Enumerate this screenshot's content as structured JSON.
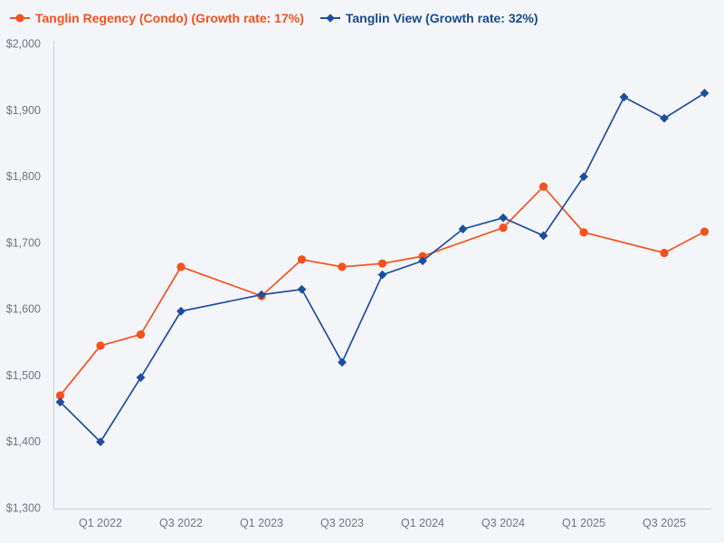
{
  "page": {
    "background": "#f4f5f8",
    "axis_line_color": "#c7d0de",
    "tick_text_color": "#6e7682"
  },
  "legend": {
    "items": [
      {
        "label": "Tanglin Regency (Condo) (Growth rate: 17%)",
        "text_color": "#f4511e",
        "line_color": "#f4511e",
        "marker": "circle"
      },
      {
        "label": "Tanglin View (Growth rate: 32%)",
        "text_color": "#17498f",
        "line_color": "#1d4e9e",
        "marker": "diamond"
      }
    ]
  },
  "chart_data": {
    "type": "line",
    "title": "",
    "xlabel": "",
    "ylabel": "",
    "grid": false,
    "legend_position": "top-left",
    "categories": [
      "Q4 2021",
      "Q1 2022",
      "Q2 2022",
      "Q3 2022",
      "Q4 2022",
      "Q1 2023",
      "Q2 2023",
      "Q3 2023",
      "Q4 2023",
      "Q1 2024",
      "Q2 2024",
      "Q3 2024",
      "Q4 2024",
      "Q1 2025",
      "Q2 2025",
      "Q3 2025",
      "Q4 2025"
    ],
    "x_axis": {
      "tick_indices": [
        1,
        3,
        5,
        7,
        9,
        11,
        13,
        15
      ],
      "tick_labels": [
        "Q1 2022",
        "Q3 2022",
        "Q1 2023",
        "Q3 2023",
        "Q1 2024",
        "Q3 2024",
        "Q1 2025",
        "Q3 2025"
      ]
    },
    "y_axis": {
      "min": 1300,
      "max": 2000,
      "step": 100,
      "tick_labels": [
        "$2,000",
        "$1,900",
        "$1,800",
        "$1,700",
        "$1,600",
        "$1,500",
        "$1,400",
        "$1,300"
      ]
    },
    "series": [
      {
        "name": "Tanglin Regency (Condo)",
        "growth_rate": "17%",
        "color": "#f4511e",
        "marker": "circle",
        "points": [
          [
            0,
            1470
          ],
          [
            1,
            1545
          ],
          [
            2,
            1562
          ],
          [
            3,
            1664
          ],
          [
            5,
            1620
          ],
          [
            6,
            1675
          ],
          [
            7,
            1664
          ],
          [
            8,
            1669
          ],
          [
            9,
            1680
          ],
          [
            11,
            1723
          ],
          [
            12,
            1785
          ],
          [
            13,
            1716
          ],
          [
            15,
            1685
          ],
          [
            16,
            1717
          ]
        ]
      },
      {
        "name": "Tanglin View",
        "growth_rate": "32%",
        "color": "#1d4e9e",
        "marker": "diamond",
        "points": [
          [
            0,
            1460
          ],
          [
            1,
            1400
          ],
          [
            2,
            1497
          ],
          [
            3,
            1597
          ],
          [
            5,
            1622
          ],
          [
            6,
            1630
          ],
          [
            7,
            1520
          ],
          [
            8,
            1652
          ],
          [
            9,
            1673
          ],
          [
            10,
            1721
          ],
          [
            11,
            1738
          ],
          [
            12,
            1711
          ],
          [
            13,
            1800
          ],
          [
            14,
            1920
          ],
          [
            15,
            1888
          ],
          [
            16,
            1926
          ]
        ]
      }
    ]
  }
}
